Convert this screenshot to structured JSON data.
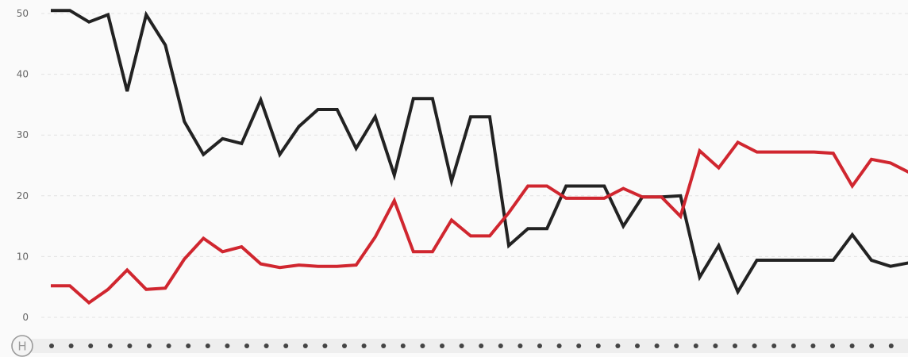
{
  "chart_data": {
    "type": "line",
    "y_ticks": [
      "0",
      "10",
      "20",
      "30",
      "40",
      "50"
    ],
    "ylim": [
      0,
      52
    ],
    "grid": true,
    "x": [
      1,
      2,
      3,
      4,
      5,
      6,
      7,
      8,
      9,
      10,
      11,
      12,
      13,
      14,
      15,
      16,
      17,
      18,
      19,
      20,
      21,
      22,
      23,
      24,
      25,
      26,
      27,
      28,
      29,
      30,
      31,
      32,
      33,
      34,
      35,
      36,
      37,
      38,
      39,
      40,
      41,
      42,
      43,
      44,
      45,
      46,
      47
    ],
    "series": [
      {
        "color": "#222222",
        "values": [
          50.5,
          50.5,
          48.6,
          49.8,
          37.2,
          49.8,
          44.8,
          32.2,
          26.8,
          29.4,
          28.6,
          35.8,
          26.8,
          31.4,
          34.2,
          34.2,
          27.8,
          33.0,
          23.4,
          36.0,
          36.0,
          22.4,
          33.0,
          33.0,
          11.8,
          14.6,
          14.6,
          21.6,
          21.6,
          21.6,
          15.0,
          19.8,
          19.8,
          20.0,
          6.6,
          11.8,
          4.2,
          9.4,
          9.4,
          9.4,
          9.4,
          9.4,
          13.6,
          9.4,
          8.4,
          9.0,
          8.6
        ]
      },
      {
        "color": "#d0262f",
        "values": [
          5.2,
          5.2,
          2.4,
          4.6,
          7.8,
          4.6,
          4.8,
          9.6,
          13.0,
          10.8,
          11.6,
          8.8,
          8.2,
          8.6,
          8.4,
          8.4,
          8.6,
          13.2,
          19.2,
          10.8,
          10.8,
          16.0,
          13.4,
          13.4,
          17.2,
          21.6,
          21.6,
          19.6,
          19.6,
          19.6,
          21.2,
          19.8,
          19.8,
          16.6,
          27.4,
          24.6,
          28.8,
          27.2,
          27.2,
          27.2,
          27.2,
          27.0,
          21.6,
          26.0,
          25.4,
          23.8,
          22.6
        ]
      }
    ]
  },
  "timeline": {
    "marker_letter": "H",
    "marker_icon": "h-circle-icon",
    "dot_count": 45
  }
}
